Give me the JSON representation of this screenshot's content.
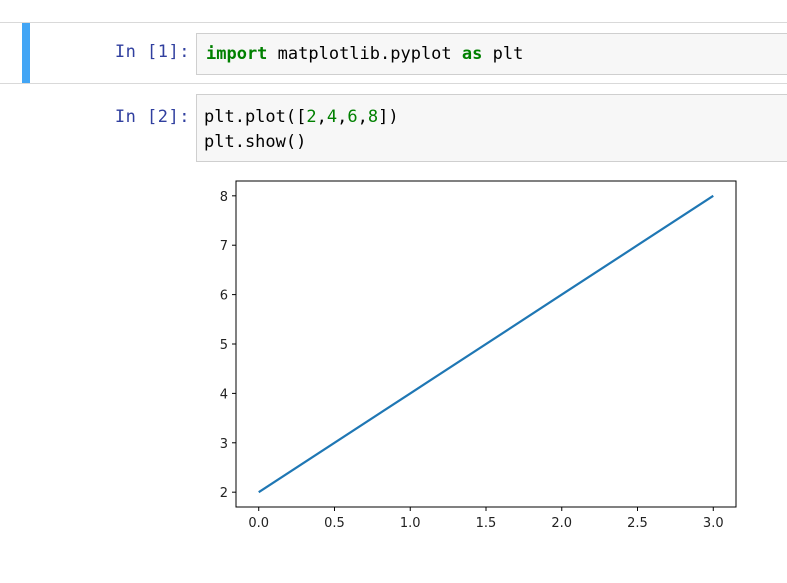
{
  "cells": [
    {
      "prompt": "In [1]:",
      "code": [
        [
          {
            "t": "import",
            "c": "kw"
          },
          {
            "t": " matplotlib.pyplot ",
            "c": ""
          },
          {
            "t": "as",
            "c": "kw2"
          },
          {
            "t": " plt",
            "c": ""
          }
        ]
      ]
    },
    {
      "prompt": "In [2]:",
      "code": [
        [
          {
            "t": "plt.plot([",
            "c": ""
          },
          {
            "t": "2",
            "c": "num"
          },
          {
            "t": ",",
            "c": ""
          },
          {
            "t": "4",
            "c": "num"
          },
          {
            "t": ",",
            "c": ""
          },
          {
            "t": "6",
            "c": "num"
          },
          {
            "t": ",",
            "c": ""
          },
          {
            "t": "8",
            "c": "num"
          },
          {
            "t": "])",
            "c": ""
          }
        ],
        [
          {
            "t": "plt.show()",
            "c": ""
          }
        ]
      ]
    }
  ],
  "chart_data": {
    "type": "line",
    "x": [
      0,
      1,
      2,
      3
    ],
    "series": [
      {
        "values": [
          2,
          4,
          6,
          8
        ],
        "color": "#1f77b4"
      }
    ],
    "xticks": [
      0.0,
      0.5,
      1.0,
      1.5,
      2.0,
      2.5,
      3.0
    ],
    "xtick_labels": [
      "0.0",
      "0.5",
      "1.0",
      "1.5",
      "2.0",
      "2.5",
      "3.0"
    ],
    "yticks": [
      2,
      3,
      4,
      5,
      6,
      7,
      8
    ],
    "ytick_labels": [
      "2",
      "3",
      "4",
      "5",
      "6",
      "7",
      "8"
    ],
    "xlim": [
      -0.15,
      3.15
    ],
    "ylim": [
      1.7,
      8.3
    ],
    "grid": false,
    "title": "",
    "xlabel": "",
    "ylabel": ""
  }
}
